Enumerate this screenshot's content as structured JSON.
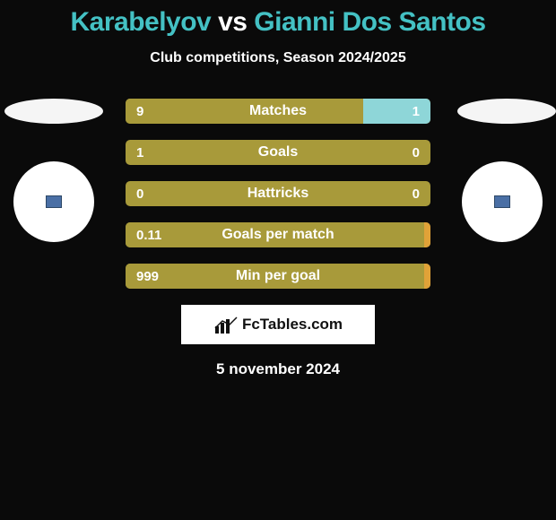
{
  "title": {
    "player1": "Karabelyov",
    "vs": "vs",
    "player2": "Gianni Dos Santos",
    "color_players": "#44c1c4",
    "color_vs": "#ffffff"
  },
  "subtitle": "Club competitions, Season 2024/2025",
  "date": "5 november 2024",
  "branding": {
    "text": "FcTables.com"
  },
  "palette": {
    "bg": "#0a0a0a",
    "bar_olive": "#a89a3a",
    "bar_teal": "#8ed6d8",
    "bar_orange": "#e0a238",
    "text": "#ffffff"
  },
  "bar_style": {
    "height": 28,
    "border_radius": 5,
    "gap": 18,
    "label_fontsize": 16,
    "value_fontsize": 15
  },
  "stats": [
    {
      "label": "Matches",
      "left_value": "9",
      "right_value": "1",
      "left_pct": 78,
      "right_pct": 22,
      "left_color": "#a89a3a",
      "right_color": "#8ed6d8"
    },
    {
      "label": "Goals",
      "left_value": "1",
      "right_value": "0",
      "left_pct": 100,
      "right_pct": 0,
      "left_color": "#a89a3a",
      "right_color": "#8ed6d8"
    },
    {
      "label": "Hattricks",
      "left_value": "0",
      "right_value": "0",
      "left_pct": 100,
      "right_pct": 0,
      "left_color": "#a89a3a",
      "right_color": "#8ed6d8"
    },
    {
      "label": "Goals per match",
      "left_value": "0.11",
      "right_value": "",
      "left_pct": 98,
      "right_pct": 2,
      "left_color": "#a89a3a",
      "right_color": "#e0a238"
    },
    {
      "label": "Min per goal",
      "left_value": "999",
      "right_value": "",
      "left_pct": 98,
      "right_pct": 2,
      "left_color": "#a89a3a",
      "right_color": "#e0a238"
    }
  ],
  "players": {
    "left": {
      "flag_color": "#f5f5f5",
      "club_bg": "#ffffff",
      "badge_color": "#4a6fa5"
    },
    "right": {
      "flag_color": "#f5f5f5",
      "club_bg": "#ffffff",
      "badge_color": "#4a6fa5"
    }
  }
}
